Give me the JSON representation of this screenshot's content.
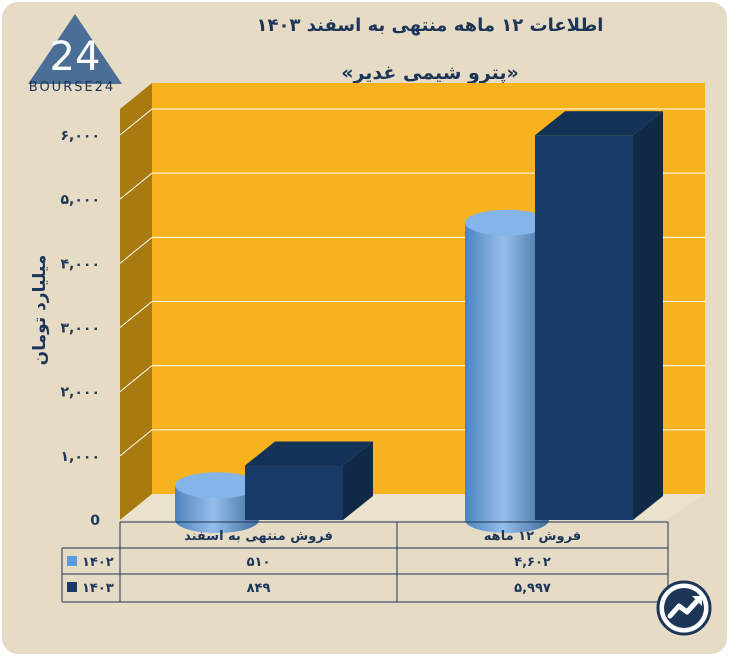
{
  "title": "اطلاعات ۱۲ ماهه منتهی به اسفند ۱۴۰۳",
  "subtitle": "«پترو شیمی غدیر»",
  "logo_text": "BOURSE24",
  "logo_mark": "24",
  "colors": {
    "background": "#e6dcc6",
    "plot_back": "#f7b21e",
    "plot_side": "#a87a10",
    "series_1402": "#5c9be0",
    "series_1403": "#173b66",
    "text": "#1d3557"
  },
  "chart_data": {
    "type": "bar",
    "ylabel": "میلیارد تومان",
    "ylim": [
      0,
      6000
    ],
    "y_ticks": [
      0,
      1000,
      2000,
      3000,
      4000,
      5000,
      6000
    ],
    "y_tick_labels": [
      "0",
      "۱,۰۰۰",
      "۲,۰۰۰",
      "۳,۰۰۰",
      "۴,۰۰۰",
      "۵,۰۰۰",
      "۶,۰۰۰"
    ],
    "categories": [
      "فروش منتهی به  اسفند",
      "فروش ۱۲  ماهه"
    ],
    "series": [
      {
        "name": "۱۴۰۲",
        "values": [
          510,
          4602
        ],
        "labels": [
          "۵۱۰",
          "۴,۶۰۲"
        ],
        "color": "#5c9be0",
        "shape": "cylinder"
      },
      {
        "name": "۱۴۰۳",
        "values": [
          849,
          5997
        ],
        "labels": [
          "۸۴۹",
          "۵,۹۹۷"
        ],
        "color": "#173b66",
        "shape": "box"
      }
    ],
    "grid": true,
    "legend": "table-left"
  },
  "badge_icon": "trend-arrow-icon"
}
